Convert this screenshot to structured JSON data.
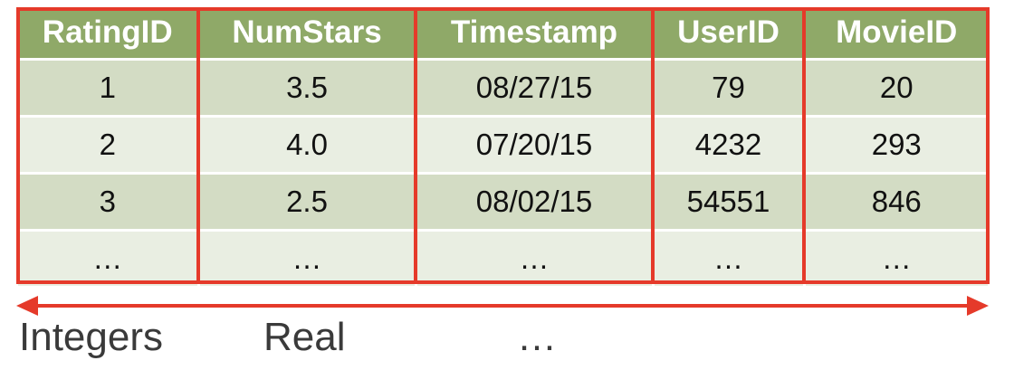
{
  "table": {
    "headers": [
      "RatingID",
      "NumStars",
      "Timestamp",
      "UserID",
      "MovieID"
    ],
    "rows": [
      [
        "1",
        "3.5",
        "08/27/15",
        "79",
        "20"
      ],
      [
        "2",
        "4.0",
        "07/20/15",
        "4232",
        "293"
      ],
      [
        "3",
        "2.5",
        "08/02/15",
        "54551",
        "846"
      ],
      [
        "…",
        "…",
        "…",
        "…",
        "…"
      ]
    ]
  },
  "labels": {
    "integers": "Integers",
    "real": "Real",
    "more": "…"
  },
  "colors": {
    "header_bg": "#8fa968",
    "row_dark": "#d3dcc4",
    "row_light": "#e9eee2",
    "highlight": "#e53a2a"
  }
}
